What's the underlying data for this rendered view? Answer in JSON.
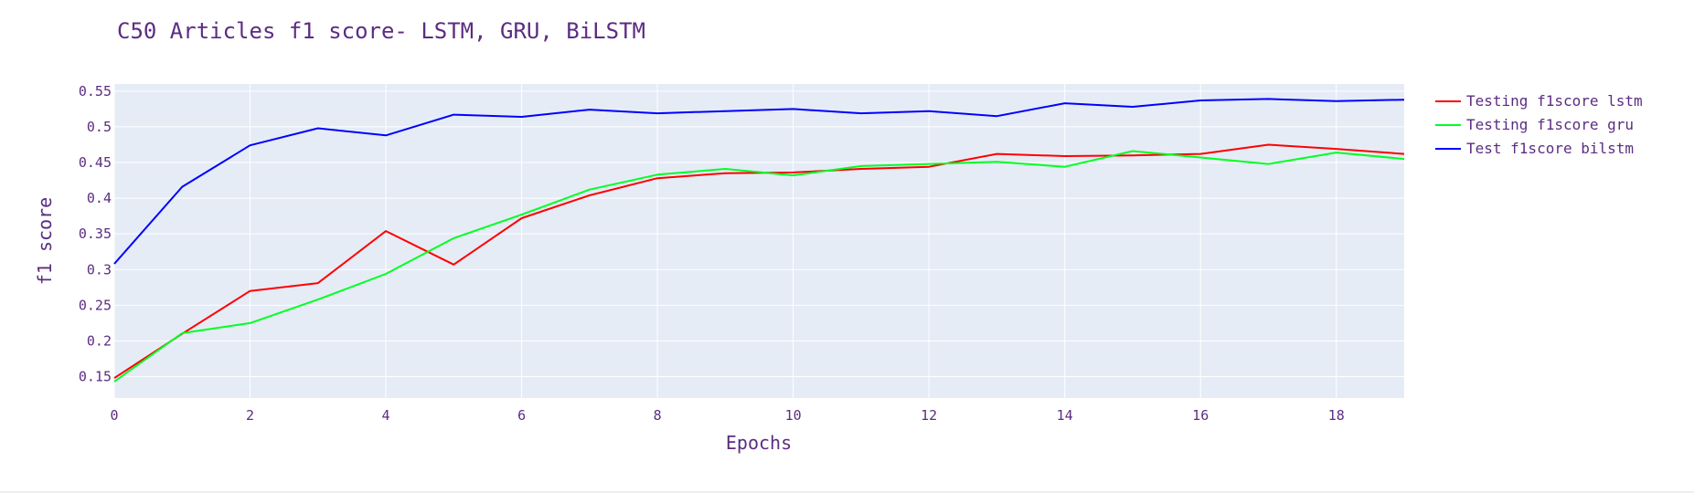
{
  "chart_data": {
    "type": "line",
    "title": "C50 Articles f1 score- LSTM, GRU, BiLSTM",
    "xlabel": "Epochs",
    "ylabel": "f1 score",
    "xlim": [
      0,
      19
    ],
    "ylim": [
      0.12,
      0.56
    ],
    "xticks": [
      0,
      2,
      4,
      6,
      8,
      10,
      12,
      14,
      16,
      18
    ],
    "yticks": [
      0.15,
      0.2,
      0.25,
      0.3,
      0.35,
      0.4,
      0.45,
      0.5,
      0.55
    ],
    "ytick_labels": [
      "0.15",
      "0.2",
      "0.25",
      "0.3",
      "0.35",
      "0.4",
      "0.45",
      "0.5",
      "0.55"
    ],
    "grid": true,
    "legend_position": "top-right",
    "x": [
      0,
      1,
      2,
      3,
      4,
      5,
      6,
      7,
      8,
      9,
      10,
      11,
      12,
      13,
      14,
      15,
      16,
      17,
      18,
      19
    ],
    "series": [
      {
        "name": "Testing f1score lstm",
        "color": "#ff0000",
        "values": [
          0.148,
          0.21,
          0.27,
          0.281,
          0.354,
          0.307,
          0.372,
          0.404,
          0.428,
          0.435,
          0.436,
          0.441,
          0.444,
          0.462,
          0.459,
          0.46,
          0.462,
          0.475,
          0.469,
          0.462
        ]
      },
      {
        "name": "Testing f1score gru",
        "color": "#00ff22",
        "values": [
          0.143,
          0.211,
          0.225,
          0.258,
          0.294,
          0.344,
          0.377,
          0.412,
          0.433,
          0.441,
          0.432,
          0.445,
          0.448,
          0.451,
          0.444,
          0.466,
          0.457,
          0.448,
          0.464,
          0.455
        ]
      },
      {
        "name": "Test f1score bilstm",
        "color": "#0000ff",
        "values": [
          0.308,
          0.416,
          0.474,
          0.498,
          0.488,
          0.517,
          0.514,
          0.524,
          0.519,
          0.522,
          0.525,
          0.519,
          0.522,
          0.515,
          0.533,
          0.528,
          0.537,
          0.539,
          0.536,
          0.538
        ]
      }
    ]
  }
}
